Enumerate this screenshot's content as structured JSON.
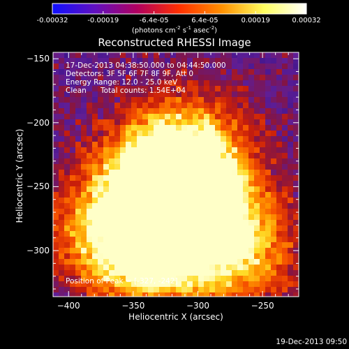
{
  "chart_data": {
    "type": "heatmap",
    "title": "Reconstructed RHESSI Image",
    "xlabel": "Heliocentric X (arcsec)",
    "ylabel": "Heliocentric Y (arcsec)",
    "xlim": [
      -412,
      -222
    ],
    "ylim": [
      -336,
      -145
    ],
    "x_ticks": [
      -400,
      -350,
      -300,
      -250
    ],
    "y_ticks": [
      -300,
      -250,
      -200,
      -150
    ],
    "colorbar": {
      "ticks": [
        "-0.00032",
        "-0.00019",
        "-6.4e-05",
        "6.4e-05",
        "0.00019",
        "0.00032"
      ],
      "range": [
        -0.00032,
        0.00032
      ],
      "unit_label": "(photons cm",
      "unit_sup1": "-2",
      "unit_mid": " s",
      "unit_sup2": "-1",
      "unit_mid2": " asec",
      "unit_sup3": "-2",
      "unit_end": ")",
      "colors": [
        "#1010ff",
        "#6010c0",
        "#b00060",
        "#ff3000",
        "#ff9000",
        "#ffff60",
        "#ffffff"
      ]
    },
    "annotations": {
      "time_range": "17-Dec-2013 04:38:50.000 to 04:44:50.000",
      "detectors": "Detectors: 3F 5F 6F 7F 8F 9F, Att 0",
      "energy": "Energy Range: 12.0 - 25.0 keV",
      "clean_label": "Clean",
      "counts": "Total counts: 1.54E+04",
      "peak": "Position of Peak = [-327, -242]"
    },
    "sources": [
      {
        "x": -327,
        "y": -242,
        "strength": 1.0
      },
      {
        "x": -340,
        "y": -300,
        "strength": 0.9
      },
      {
        "x": -300,
        "y": -265,
        "strength": 0.75
      },
      {
        "x": -270,
        "y": -300,
        "strength": 0.7
      },
      {
        "x": -370,
        "y": -280,
        "strength": 0.55
      },
      {
        "x": -305,
        "y": -220,
        "strength": 0.5
      }
    ]
  },
  "footer": {
    "timestamp": "19-Dec-2013 09:50"
  }
}
